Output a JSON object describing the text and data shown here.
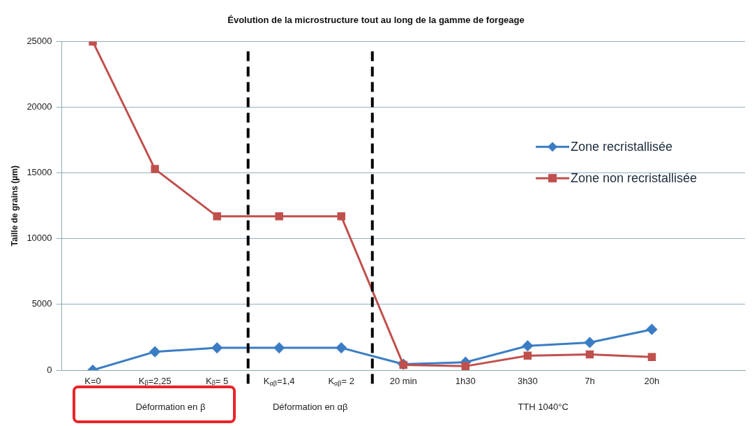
{
  "chart_data": {
    "type": "line",
    "title": "Évolution de la microstructure tout au long de la gamme de forgeage",
    "ylabel": "Taille de grains (µm)",
    "categories": [
      "K=0",
      "Kᵦ=2,25",
      "Kᵦ= 5",
      "K$_{αβ}$=1,4",
      "K$_{αβ}$= 2",
      "20 min",
      "1h30",
      "3h30",
      "7h",
      "20h",
      null
    ],
    "series": [
      {
        "name": "Zone recristallisée",
        "color": "#3b7dc4",
        "marker": "diamond",
        "values": [
          0,
          1400,
          1700,
          1700,
          1700,
          450,
          600,
          1850,
          2100,
          3100,
          null
        ]
      },
      {
        "name": "Zone non recristallisée",
        "color": "#c0504d",
        "marker": "square",
        "values": [
          25000,
          15300,
          11700,
          11700,
          11700,
          400,
          300,
          1100,
          1200,
          1000,
          null
        ]
      }
    ],
    "ylim": [
      0,
      25000
    ],
    "yticks": [
      0,
      5000,
      10000,
      15000,
      20000,
      25000
    ],
    "grid": "y",
    "legend": "right",
    "line_style": "solid",
    "annotations": [
      "Déformation en β",
      "Déformation en αβ",
      "TTH 1040°C"
    ]
  }
}
